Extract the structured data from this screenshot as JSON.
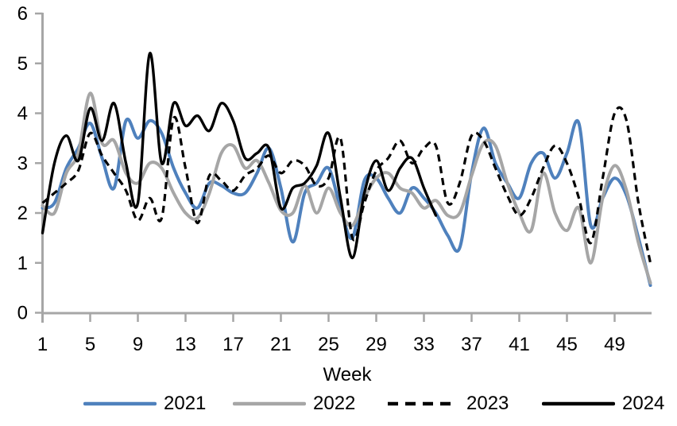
{
  "chart_data": {
    "type": "line",
    "title": "",
    "xlabel": "Week",
    "ylabel": "",
    "grid": false,
    "legend_position": "bottom",
    "ylim": [
      0,
      6
    ],
    "y_tick_labels": [
      "0",
      "1",
      "2",
      "3",
      "4",
      "5",
      "6"
    ],
    "x_tick_weeks": [
      1,
      5,
      9,
      13,
      17,
      21,
      25,
      29,
      33,
      37,
      41,
      45,
      49
    ],
    "x_weeks_total": 52,
    "axis_color": "#A6A6A6",
    "background_color": "#FFFFFF",
    "series": [
      {
        "name": "2021",
        "color": "#4F81BD",
        "style": "solid",
        "start_week": 1,
        "values": [
          2.1,
          2.2,
          2.9,
          3.3,
          3.8,
          3.1,
          2.5,
          3.85,
          3.5,
          3.85,
          3.6,
          2.9,
          2.4,
          2.1,
          2.6,
          2.55,
          2.4,
          2.4,
          2.8,
          3.3,
          2.5,
          1.42,
          2.4,
          2.6,
          2.9,
          2.1,
          1.5,
          2.65,
          2.7,
          2.3,
          2.0,
          2.5,
          2.3,
          2.0,
          1.55,
          1.3,
          2.8,
          3.7,
          3.0,
          2.6,
          2.3,
          3.0,
          3.2,
          2.7,
          3.2,
          3.8,
          1.75,
          2.3,
          2.7,
          2.35,
          1.5,
          0.55
        ]
      },
      {
        "name": "2022",
        "color": "#A6A6A6",
        "style": "solid",
        "start_week": 1,
        "values": [
          2.15,
          2.0,
          2.8,
          3.2,
          4.4,
          3.4,
          3.45,
          2.8,
          2.6,
          3.0,
          2.9,
          2.4,
          2.0,
          1.9,
          2.4,
          3.2,
          3.35,
          2.9,
          3.05,
          2.6,
          2.05,
          2.0,
          2.55,
          2.0,
          2.5,
          2.0,
          1.75,
          2.3,
          2.7,
          2.8,
          2.5,
          2.4,
          2.1,
          2.25,
          1.95,
          2.0,
          2.75,
          3.4,
          3.35,
          2.6,
          2.0,
          1.65,
          2.8,
          2.0,
          1.65,
          2.1,
          1.0,
          2.3,
          2.95,
          2.45,
          1.4,
          0.6
        ]
      },
      {
        "name": "2023",
        "color": "#000000",
        "style": "dashed",
        "start_week": 1,
        "values": [
          2.2,
          2.4,
          2.6,
          2.85,
          3.6,
          3.15,
          2.8,
          2.45,
          1.85,
          2.3,
          1.9,
          3.9,
          2.9,
          1.8,
          2.75,
          2.65,
          2.45,
          2.75,
          2.9,
          3.15,
          2.8,
          3.05,
          2.95,
          2.55,
          2.7,
          3.5,
          1.5,
          2.2,
          2.85,
          3.1,
          3.45,
          3.0,
          3.3,
          3.35,
          2.2,
          2.6,
          3.55,
          3.45,
          2.9,
          2.35,
          1.95,
          2.3,
          2.9,
          3.35,
          3.0,
          2.3,
          1.4,
          2.7,
          4.0,
          3.85,
          2.2,
          1.0
        ]
      },
      {
        "name": "2024",
        "color": "#000000",
        "style": "solid",
        "start_week": 1,
        "values": [
          1.6,
          3.0,
          3.55,
          3.05,
          4.1,
          3.45,
          4.2,
          3.0,
          2.2,
          5.2,
          3.0,
          4.2,
          3.75,
          3.95,
          3.65,
          4.2,
          3.85,
          3.1,
          3.2,
          3.3,
          2.1,
          2.5,
          2.6,
          2.95,
          3.6,
          2.3,
          1.1,
          2.4,
          3.05,
          2.45,
          2.9,
          3.1,
          2.5,
          1.95
        ]
      }
    ]
  },
  "legend": {
    "items": [
      "2021",
      "2022",
      "2023",
      "2024"
    ]
  }
}
